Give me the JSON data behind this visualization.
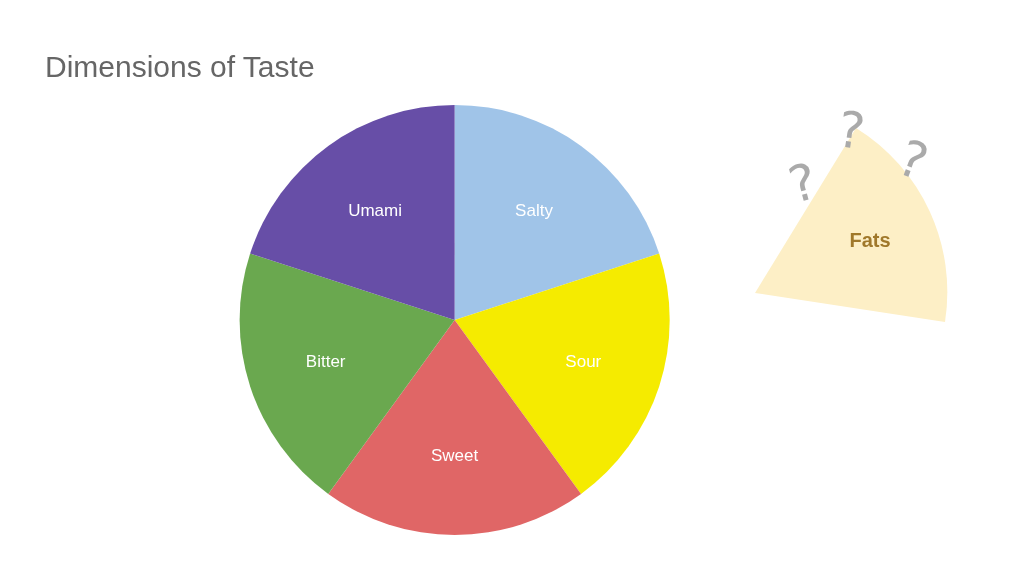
{
  "chart_data": {
    "type": "pie",
    "title": "Dimensions of Taste",
    "categories": [
      "Salty",
      "Sour",
      "Sweet",
      "Bitter",
      "Umami"
    ],
    "values": [
      20,
      20,
      20,
      20,
      20
    ],
    "colors": [
      "#a0c4e8",
      "#f5eb00",
      "#e06666",
      "#6aa84f",
      "#674ea7"
    ],
    "annotations": [
      "Fats",
      "?",
      "?",
      "?"
    ]
  }
}
